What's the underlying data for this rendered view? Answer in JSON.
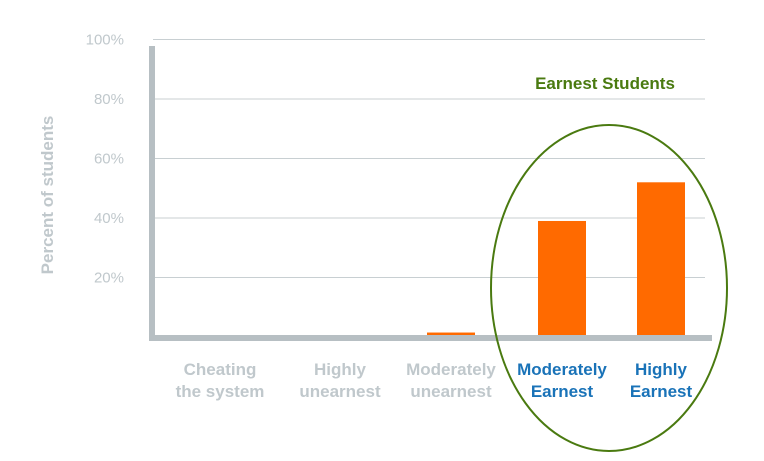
{
  "chart_data": {
    "type": "bar",
    "title": "",
    "xlabel": "",
    "ylabel": "Percent of students",
    "ylim": [
      0,
      100
    ],
    "yticks": [
      20,
      40,
      60,
      80,
      100
    ],
    "ytick_labels": [
      "20%",
      "40%",
      "60%",
      "80%",
      "100%"
    ],
    "grid": true,
    "categories": [
      [
        "Cheating",
        "the system"
      ],
      [
        "Highly",
        "unearnest"
      ],
      [
        "Moderately",
        "unearnest"
      ],
      [
        "Moderately",
        "Earnest"
      ],
      [
        "Highly",
        "Earnest"
      ]
    ],
    "values": [
      0,
      0,
      1.5,
      39,
      52
    ],
    "highlighted": [
      false,
      false,
      false,
      true,
      true
    ],
    "annotation": "Earnest Students"
  },
  "colors": {
    "bar": "#ff6a00",
    "axis": "#b7bfc3",
    "grid": "#c8cfd2",
    "muted_text": "#c0c8cc",
    "highlight_text": "#1a73b8",
    "annotation": "#4a7a10",
    "ellipse": "#4a7a10"
  }
}
